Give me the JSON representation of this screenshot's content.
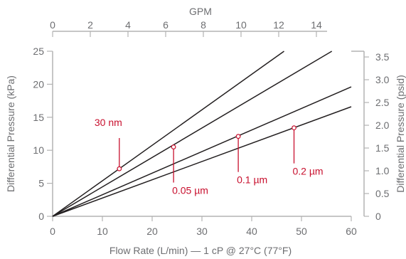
{
  "chart_data": {
    "type": "line",
    "title": "",
    "colors": {
      "axis": "#b3b3b3",
      "text": "#6d6e71",
      "series": "#231f20",
      "annotation": "#c8102e"
    },
    "x_bottom": {
      "label": "Flow Rate (L/min) — 1 cP @ 27°C (77°F)",
      "range": [
        0,
        60
      ],
      "ticks": [
        0,
        10,
        20,
        30,
        40,
        50,
        60
      ]
    },
    "x_top": {
      "label": "GPM",
      "range": [
        0,
        15.85
      ],
      "ticks": [
        0,
        2,
        4,
        6,
        8,
        10,
        12,
        14
      ]
    },
    "y_left": {
      "label": "Differential Pressure (kPa)",
      "range": [
        0,
        25
      ],
      "ticks": [
        0,
        5,
        10,
        15,
        20,
        25
      ]
    },
    "y_right": {
      "label": "Differential Pressure (psid)",
      "range": [
        0,
        3.626
      ],
      "ticks": [
        "0",
        "0.5",
        "1.0",
        "1.5",
        "2.0",
        "2.5",
        "3.0",
        "3.5"
      ]
    },
    "series": [
      {
        "name": "30 nm",
        "x": [
          0,
          46.5
        ],
        "y": [
          0,
          25
        ]
      },
      {
        "name": "0.05 µm",
        "x": [
          0,
          56.1
        ],
        "y": [
          0,
          25
        ]
      },
      {
        "name": "0.1 µm",
        "x": [
          0,
          60
        ],
        "y": [
          0,
          19.6
        ]
      },
      {
        "name": "0.2 µm",
        "x": [
          0,
          60
        ],
        "y": [
          0,
          16.6
        ]
      }
    ],
    "annotations": [
      {
        "text": "30 nm",
        "series": 0,
        "point": [
          13.4,
          7.2
        ],
        "label_pos": "above-left"
      },
      {
        "text": "0.05 µm",
        "series": 1,
        "point": [
          24.3,
          10.5
        ],
        "label_pos": "below"
      },
      {
        "text": "0.1 µm",
        "series": 2,
        "point": [
          37.3,
          12.1
        ],
        "label_pos": "below"
      },
      {
        "text": "0.2 µm",
        "series": 3,
        "point": [
          48.5,
          13.4
        ],
        "label_pos": "below"
      }
    ]
  }
}
